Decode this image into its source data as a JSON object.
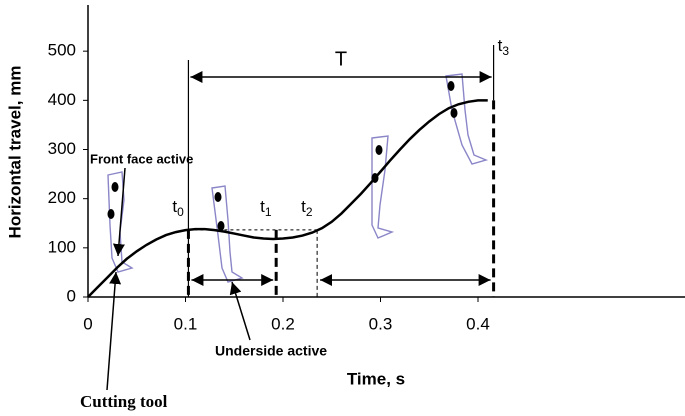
{
  "chart_data": {
    "type": "line",
    "x_label": "Time, s",
    "y_label": "Horizontal travel, mm",
    "x": [
      0,
      0.01,
      0.02,
      0.03,
      0.04,
      0.05,
      0.06,
      0.07,
      0.08,
      0.09,
      0.1,
      0.11,
      0.12,
      0.13,
      0.14,
      0.15,
      0.16,
      0.17,
      0.18,
      0.19,
      0.2,
      0.21,
      0.22,
      0.23,
      0.24,
      0.25,
      0.26,
      0.27,
      0.28,
      0.29,
      0.3,
      0.31,
      0.32,
      0.33,
      0.34,
      0.35,
      0.36,
      0.37,
      0.38,
      0.39,
      0.4,
      0.41
    ],
    "series": [
      {
        "color": "#000000",
        "values": [
          0,
          20,
          40,
          60,
          78,
          93,
          106,
          117,
          126,
          132,
          136,
          138,
          138,
          136,
          133,
          129,
          125,
          121,
          119,
          118,
          119,
          121,
          125,
          131,
          140,
          153,
          170,
          190,
          210,
          232,
          255,
          278,
          300,
          321,
          340,
          357,
          372,
          384,
          392,
          397,
          400,
          400
        ]
      }
    ],
    "xlim": [
      0,
      0.6
    ],
    "ylim": [
      0,
      600
    ],
    "xticks": [
      0,
      0.1,
      0.2,
      0.3,
      0.4
    ],
    "yticks": [
      0,
      100,
      200,
      300,
      400,
      500
    ],
    "grid": false,
    "markers": [
      {
        "text": "t",
        "subscript": "0",
        "x": 0.103
      },
      {
        "text": "t",
        "subscript": "1",
        "x": 0.193
      },
      {
        "text": "t",
        "subscript": "2",
        "x": 0.235
      },
      {
        "text": "t",
        "subscript": "3",
        "x": 0.416
      }
    ],
    "period_label": "T",
    "annotations": [
      "Front face active",
      "Underside active",
      "Cutting tool"
    ]
  }
}
